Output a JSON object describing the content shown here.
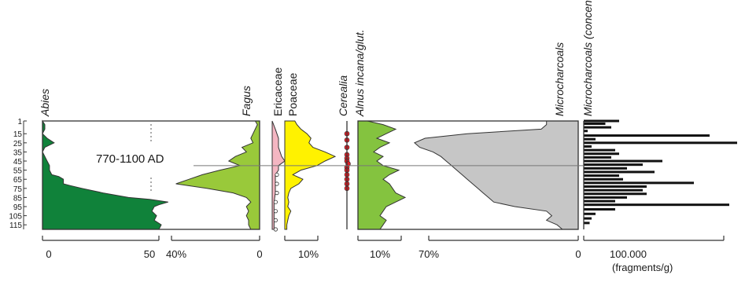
{
  "chart_data": {
    "type": "area",
    "depth_ticks": [
      "1",
      "15",
      "25",
      "35",
      "45",
      "55",
      "65",
      "75",
      "85",
      "95",
      "105",
      "115"
    ],
    "event_label": "770-1100 AD",
    "event_depth": 50,
    "panels": [
      {
        "name": "Abies",
        "italic": true,
        "color": "#10823a",
        "from": "left",
        "scale_labels": [
          "0",
          "50"
        ],
        "depths": [
          1,
          5,
          10,
          15,
          20,
          25,
          30,
          35,
          40,
          45,
          50,
          55,
          60,
          62,
          65,
          70,
          72,
          75,
          80,
          85,
          87,
          90,
          93,
          95,
          100,
          105,
          110,
          115,
          120
        ],
        "values": [
          0,
          1,
          1,
          0,
          2,
          5,
          1,
          0,
          1,
          2,
          3,
          3,
          4,
          7,
          9,
          9,
          12,
          17,
          26,
          37,
          46,
          54,
          50,
          48,
          47,
          49,
          48,
          51,
          50
        ]
      },
      {
        "name": "Fagus",
        "italic": true,
        "color": "#99c93a",
        "from": "right",
        "scale_labels": [
          "40%",
          "0"
        ],
        "depths": [
          1,
          5,
          10,
          15,
          20,
          25,
          30,
          35,
          40,
          45,
          50,
          55,
          60,
          65,
          70,
          75,
          80,
          85,
          90,
          95,
          100,
          105,
          110,
          115,
          120
        ],
        "values": [
          2,
          1,
          2,
          3,
          4,
          3,
          8,
          6,
          11,
          14,
          9,
          18,
          26,
          32,
          38,
          24,
          12,
          6,
          4,
          6,
          5,
          6,
          5,
          5,
          4
        ]
      },
      {
        "name": "Ericaceae",
        "italic": false,
        "color": "#f4b6c2",
        "from": "left",
        "scale_labels": [],
        "depths": [
          1,
          10,
          20,
          30,
          40,
          45,
          50,
          55,
          60,
          70,
          80,
          90,
          100,
          110,
          120
        ],
        "values": [
          0,
          1,
          2,
          2,
          3,
          4,
          2,
          2,
          1,
          1,
          1,
          0.6,
          0.6,
          0.6,
          0.6
        ]
      },
      {
        "name": "Poaceae",
        "italic": false,
        "color": "#fff200",
        "from": "left",
        "scale_labels": [
          "10%"
        ],
        "depths": [
          1,
          5,
          10,
          15,
          20,
          25,
          30,
          35,
          40,
          45,
          50,
          55,
          60,
          65,
          70,
          75,
          80,
          85,
          90,
          95,
          100,
          105,
          110,
          115,
          120
        ],
        "values": [
          5,
          6,
          8,
          11,
          13,
          12,
          14,
          20,
          25,
          20,
          16,
          8,
          4,
          9,
          7,
          3,
          2,
          1.5,
          2,
          1.5,
          3,
          2,
          1.5,
          1,
          1
        ]
      },
      {
        "name": "Cerealia",
        "italic": true,
        "color": "#e21f26",
        "from": "left",
        "scale_labels": [],
        "depths": [
          15,
          22,
          30,
          38,
          42,
          45,
          48,
          52,
          55,
          60,
          65,
          70,
          75
        ],
        "values": [
          1,
          1,
          1,
          1,
          1,
          1,
          1.5,
          1,
          1,
          1,
          1,
          1,
          1
        ]
      },
      {
        "name": "Alnus incana/glut.",
        "italic": true,
        "color": "#84c33f",
        "from": "left",
        "scale_labels": [
          "10%"
        ],
        "depths": [
          1,
          5,
          10,
          15,
          20,
          25,
          30,
          35,
          40,
          45,
          50,
          55,
          60,
          65,
          70,
          75,
          80,
          85,
          90,
          95,
          100,
          105,
          110,
          115,
          120
        ],
        "values": [
          3,
          8,
          12,
          9,
          6,
          10,
          7,
          5,
          8,
          6,
          8,
          13,
          10,
          8,
          10,
          11,
          12,
          15,
          12,
          9,
          8,
          7,
          9,
          8,
          7
        ]
      },
      {
        "name": "Microcharcoals",
        "italic": true,
        "color": "#c6c6c6",
        "from": "right",
        "scale_labels": [
          "70%",
          "0"
        ],
        "depths": [
          1,
          5,
          10,
          15,
          20,
          25,
          30,
          35,
          40,
          45,
          50,
          55,
          60,
          65,
          70,
          75,
          80,
          85,
          90,
          95,
          100,
          105,
          110,
          115,
          120
        ],
        "values": [
          12,
          12,
          14,
          42,
          58,
          62,
          60,
          55,
          52,
          50,
          48,
          46,
          44,
          42,
          40,
          38,
          36,
          34,
          32,
          24,
          12,
          10,
          12,
          8,
          6
        ]
      },
      {
        "name": "Microcharcoals (concentration)",
        "italic": true,
        "color": "#111111",
        "from": "left",
        "scale_labels": [
          "100.000",
          "(fragments/g)"
        ],
        "depths": [
          1,
          4,
          8,
          12,
          17,
          21,
          25,
          29,
          33,
          37,
          41,
          45,
          49,
          53,
          57,
          61,
          65,
          69,
          73,
          77,
          81,
          85,
          89,
          93,
          98,
          103,
          108,
          113
        ],
        "values": [
          90000,
          55000,
          70000,
          10000,
          320000,
          30000,
          390000,
          20000,
          80000,
          90000,
          70000,
          200000,
          150000,
          110000,
          180000,
          90000,
          100000,
          280000,
          160000,
          150000,
          160000,
          110000,
          80000,
          370000,
          80000,
          30000,
          20000,
          15000
        ]
      }
    ]
  }
}
